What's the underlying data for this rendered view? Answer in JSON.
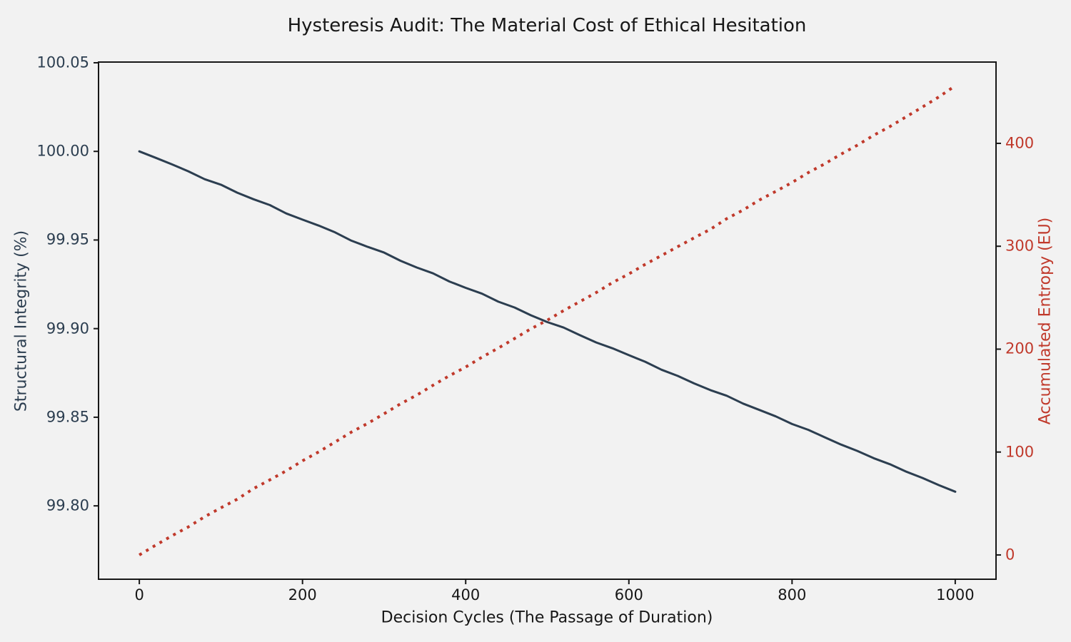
{
  "title": "Hysteresis Audit: The Material Cost of Ethical Hesitation",
  "chart_data": {
    "type": "line",
    "title": "Hysteresis Audit: The Material Cost of Ethical Hesitation",
    "xlabel": "Decision Cycles (The Passage of Duration)",
    "ylabel_left": "Structural Integrity (%)",
    "ylabel_right": "Accumulated Entropy (EU)",
    "grid": false,
    "legend": "none",
    "background_color": "#F2F2F2",
    "spine_color": "#171717",
    "xlim": [
      -50,
      1050
    ],
    "ylim_left": [
      99.7586,
      100.0504
    ],
    "ylim_right": [
      -23.6,
      479.0
    ],
    "x_tick_labels": [
      "0",
      "200",
      "400",
      "600",
      "800",
      "1000"
    ],
    "x_tick_values": [
      0,
      200,
      400,
      600,
      800,
      1000
    ],
    "left_tick_labels": [
      "100.05",
      "100.00",
      "99.95",
      "99.90",
      "99.85",
      "99.80"
    ],
    "left_tick_values": [
      100.05,
      100.0,
      99.95,
      99.9,
      99.85,
      99.8
    ],
    "right_tick_labels": [
      "0",
      "100",
      "200",
      "300",
      "400"
    ],
    "right_tick_values": [
      0,
      100,
      200,
      300,
      400
    ],
    "x": [
      0,
      20,
      40,
      60,
      80,
      100,
      120,
      140,
      160,
      180,
      200,
      220,
      240,
      260,
      280,
      300,
      320,
      340,
      360,
      380,
      400,
      420,
      440,
      460,
      480,
      500,
      520,
      540,
      560,
      580,
      600,
      620,
      640,
      660,
      680,
      700,
      720,
      740,
      760,
      780,
      800,
      820,
      840,
      860,
      880,
      900,
      920,
      940,
      960,
      980,
      1000
    ],
    "series": [
      {
        "id": "integrity-line",
        "name": "Structural Integrity",
        "axis": "left",
        "color": "#2C3E50",
        "style": "solid",
        "linewidth": 3,
        "values": [
          100.0,
          99.9964,
          99.9927,
          99.9888,
          99.9843,
          99.9812,
          99.9767,
          99.973,
          99.9697,
          99.965,
          99.9615,
          99.9581,
          99.9543,
          99.9496,
          99.9461,
          99.9429,
          99.9383,
          99.9345,
          99.9312,
          99.9266,
          99.923,
          99.9197,
          99.9152,
          99.9119,
          99.9075,
          99.9037,
          99.9006,
          99.8963,
          99.8922,
          99.8889,
          99.885,
          99.8813,
          99.8768,
          99.8733,
          99.8691,
          99.8653,
          99.8621,
          99.8577,
          99.8541,
          99.8505,
          99.8462,
          99.8429,
          99.8387,
          99.8346,
          99.831,
          99.8269,
          99.8235,
          99.8193,
          99.8157,
          99.8117,
          99.808
        ]
      },
      {
        "id": "entropy-line",
        "name": "Accumulated Entropy",
        "axis": "right",
        "color": "#C0392B",
        "style": "dotted",
        "linewidth": 4,
        "values": [
          0,
          9.5,
          18.6,
          27.2,
          37.1,
          45.8,
          54.2,
          64.5,
          73.0,
          81.7,
          91.5,
          100.2,
          109.8,
          119.4,
          127.9,
          137.2,
          146.8,
          155.3,
          164.9,
          174.2,
          182.6,
          192.3,
          201.0,
          210.4,
          219.8,
          228.1,
          237.5,
          246.2,
          255.0,
          264.7,
          273.1,
          282.4,
          291.0,
          299.6,
          308.2,
          316.5,
          326.8,
          335.2,
          344.9,
          353.3,
          362.0,
          371.6,
          380.1,
          389.5,
          398.2,
          407.8,
          416.3,
          425.9,
          435.4,
          445.2,
          456.0
        ]
      }
    ]
  }
}
